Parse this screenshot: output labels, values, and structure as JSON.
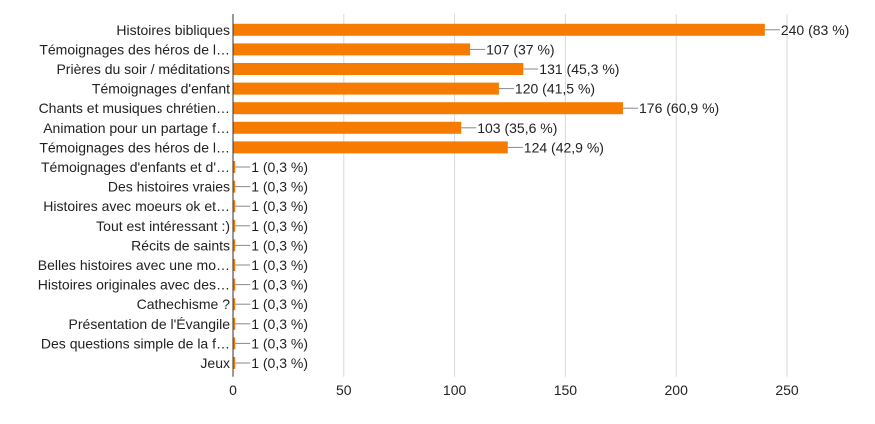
{
  "chart_data": {
    "type": "bar",
    "orientation": "horizontal",
    "categories": [
      "Histoires bibliques",
      "Témoignages des héros de l…",
      "Prières du soir / méditations",
      "Témoignages d'enfant",
      "Chants et musiques chrétien…",
      "Animation pour un partage f…",
      "Témoignages des héros de l…",
      "Témoignages d'enfants et d'…",
      "Des histoires vraies",
      "Histoires avec moeurs ok et…",
      "Tout est intéressant :)",
      "Récits de saints",
      "Belles histoires avec une mo…",
      "Histoires originales avec des…",
      "Cathechisme ?",
      "Présentation de l'Évangile",
      "Des questions simple de la f…",
      "Jeux"
    ],
    "values": [
      240,
      107,
      131,
      120,
      176,
      103,
      124,
      1,
      1,
      1,
      1,
      1,
      1,
      1,
      1,
      1,
      1,
      1
    ],
    "data_labels": [
      "240 (83 %)",
      "107 (37 %)",
      "131 (45,3 %)",
      "120 (41,5 %)",
      "176 (60,9 %)",
      "103 (35,6 %)",
      "124 (42,9 %)",
      "1 (0,3 %)",
      "1 (0,3 %)",
      "1 (0,3 %)",
      "1 (0,3 %)",
      "1 (0,3 %)",
      "1 (0,3 %)",
      "1 (0,3 %)",
      "1 (0,3 %)",
      "1 (0,3 %)",
      "1 (0,3 %)",
      "1 (0,3 %)"
    ],
    "xlim": [
      0,
      250
    ],
    "x_ticks": [
      0,
      50,
      100,
      150,
      200,
      250
    ],
    "x_tick_labels": [
      "0",
      "50",
      "100",
      "150",
      "200",
      "250"
    ],
    "grid": "vertical",
    "colors": {
      "bar": "#FF7F0E",
      "bar_fill": "#F57C00",
      "grid": "#D9D9D9",
      "axis": "#333333",
      "text": "#222222",
      "leader": "#888888"
    }
  }
}
